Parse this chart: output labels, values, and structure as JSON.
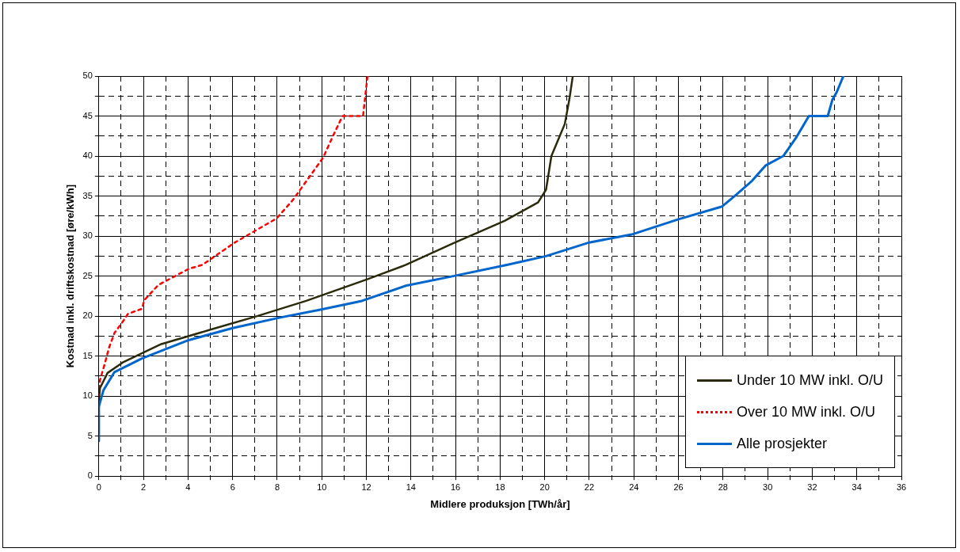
{
  "chart_data": {
    "type": "line",
    "xlabel": "Midlere produksjon [TWh/år]",
    "ylabel": "Kostnad inkl. driftskostnad [øre/kWh]",
    "xlim": [
      0,
      36
    ],
    "ylim": [
      0,
      50
    ],
    "xticks": [
      0,
      {
        "value": 1,
        "label": null
      },
      2,
      {
        "value": 3,
        "label": null
      },
      4,
      {
        "value": 5,
        "label": null
      },
      6,
      {
        "value": 7,
        "label": null
      },
      8,
      {
        "value": 9,
        "label": null
      },
      10,
      {
        "value": 11,
        "label": null
      },
      12,
      {
        "value": 13,
        "label": null
      },
      14,
      {
        "value": 15,
        "label": null
      },
      16,
      {
        "value": 17,
        "label": null
      },
      18,
      {
        "value": 19,
        "label": null
      },
      20,
      {
        "value": 21,
        "label": null
      },
      22,
      {
        "value": 23,
        "label": null
      },
      24,
      {
        "value": 25,
        "label": null
      },
      26,
      {
        "value": 27,
        "label": null
      },
      28,
      {
        "value": 29,
        "label": null
      },
      30,
      {
        "value": 31,
        "label": null
      },
      32,
      {
        "value": 33,
        "label": null
      },
      34,
      {
        "value": 35,
        "label": null
      },
      36
    ],
    "yticks": [
      0,
      {
        "value": 2.5,
        "label": null
      },
      5,
      {
        "value": 7.5,
        "label": null
      },
      10,
      {
        "value": 12.5,
        "label": null
      },
      15,
      {
        "value": 17.5,
        "label": null
      },
      20,
      {
        "value": 22.5,
        "label": null
      },
      25,
      {
        "value": 27.5,
        "label": null
      },
      30,
      {
        "value": 32.5,
        "label": null
      },
      35,
      {
        "value": 37.5,
        "label": null
      },
      40,
      {
        "value": 42.5,
        "label": null
      },
      45,
      {
        "value": 47.5,
        "label": null
      },
      50
    ],
    "grid": true,
    "legend": "bottom right",
    "marker": "none",
    "series": [
      {
        "name": "Under 10 MW inkl. O/U",
        "color": "#2b2b0b",
        "line_style": "solid",
        "x": [
          0,
          0.05,
          0.39,
          1.07,
          2.8,
          5.0,
          7.1,
          9.3,
          12.04,
          13.77,
          15.9,
          18.2,
          19.7,
          20.06,
          20.3,
          20.6,
          20.9,
          21.1,
          21.26
        ],
        "values": [
          9.5,
          11,
          12.9,
          14.2,
          16.5,
          18.3,
          20,
          21.9,
          24.6,
          26.4,
          29.1,
          31.9,
          34.2,
          35.8,
          40,
          42,
          44,
          47,
          50
        ]
      },
      {
        "name": "Over 10 MW inkl. O/U",
        "color": "#ff0000",
        "line_style": "dotted",
        "x": [
          0,
          0.05,
          0.26,
          0.45,
          0.7,
          1.07,
          1.31,
          1.93,
          2.04,
          2.67,
          4.03,
          4.64,
          6.1,
          7.97,
          8.7,
          10.06,
          10.5,
          10.93,
          11.85,
          12.05
        ],
        "values": [
          10,
          12,
          14,
          16,
          17.9,
          19.3,
          20.3,
          20.9,
          22,
          23.9,
          25.9,
          26.4,
          29.2,
          32.2,
          34.5,
          39.8,
          42.5,
          45,
          45,
          50
        ]
      },
      {
        "name": "Alle prosjekter",
        "color": "#0066cc",
        "line_style": "solid",
        "x": [
          0,
          0,
          0.2,
          0.7,
          1.93,
          4.03,
          6.0,
          8.1,
          9.94,
          11.8,
          13.77,
          15.9,
          18.3,
          20.06,
          22.0,
          23.9,
          26.0,
          27.96,
          28.6,
          29.3,
          29.9,
          30.7,
          31.3,
          31.85,
          32.7,
          32.9,
          33.1,
          33.4
        ],
        "values": [
          4.4,
          8.7,
          10.7,
          13,
          14.7,
          17,
          18.5,
          19.8,
          20.8,
          21.9,
          23.8,
          25,
          26.4,
          27.5,
          29.2,
          30.2,
          32.1,
          33.7,
          35.2,
          36.9,
          38.8,
          40,
          42.4,
          45,
          45,
          47,
          48,
          50
        ]
      }
    ]
  }
}
